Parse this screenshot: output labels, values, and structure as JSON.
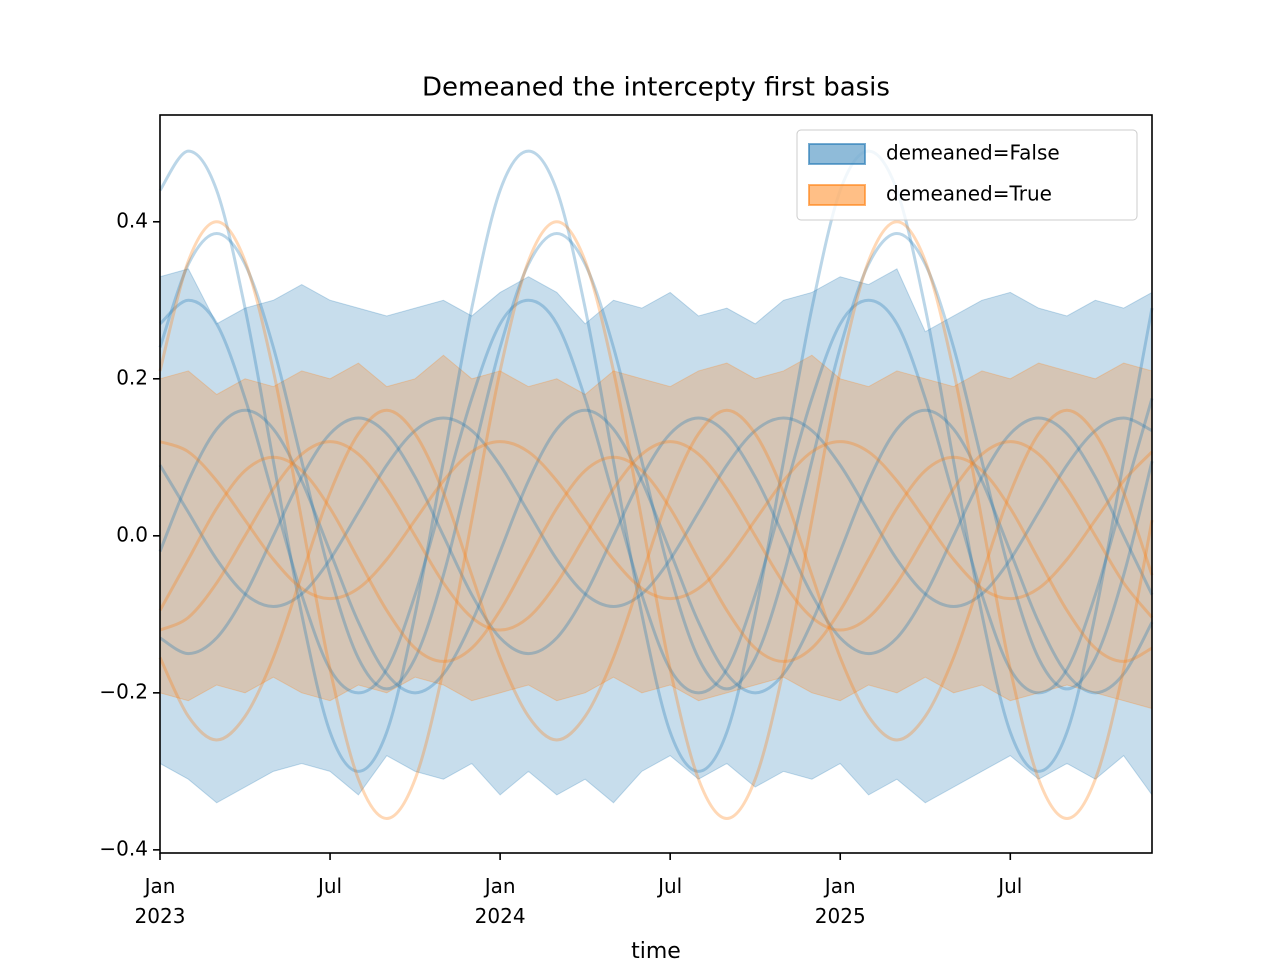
{
  "chart_data": {
    "type": "band",
    "title": "Demeaned the intercepty first basis",
    "xlabel": "time",
    "x": [
      "2023-01",
      "2023-02",
      "2023-03",
      "2023-04",
      "2023-05",
      "2023-06",
      "2023-07",
      "2023-08",
      "2023-09",
      "2023-10",
      "2023-11",
      "2023-12",
      "2024-01",
      "2024-02",
      "2024-03",
      "2024-04",
      "2024-05",
      "2024-06",
      "2024-07",
      "2024-08",
      "2024-09",
      "2024-10",
      "2024-11",
      "2024-12",
      "2025-01",
      "2025-02",
      "2025-03",
      "2025-04",
      "2025-05",
      "2025-06",
      "2025-07",
      "2025-08",
      "2025-09",
      "2025-10",
      "2025-11",
      "2025-12"
    ],
    "xlim": [
      "2023-01",
      "2025-12"
    ],
    "xticks": [
      {
        "value": "2023-01",
        "label": "Jan 2023"
      },
      {
        "value": "2023-07",
        "label": "Jul"
      },
      {
        "value": "2024-01",
        "label": "Jan 2024"
      },
      {
        "value": "2024-07",
        "label": "Jul"
      },
      {
        "value": "2025-01",
        "label": "Jan 2025"
      },
      {
        "value": "2025-07",
        "label": "Jul"
      }
    ],
    "ylim": [
      -0.404,
      0.536
    ],
    "yticks": [
      {
        "value": -0.4,
        "label": "−0.4"
      },
      {
        "value": -0.2,
        "label": "−0.2"
      },
      {
        "value": 0,
        "label": "0.0"
      },
      0.2,
      0.4
    ],
    "legend": "upper right",
    "series": [
      {
        "name": "demeaned=False",
        "color": "#1f77b4",
        "upper": [
          0.33,
          0.34,
          0.27,
          0.29,
          0.3,
          0.32,
          0.3,
          0.29,
          0.28,
          0.29,
          0.3,
          0.28,
          0.31,
          0.33,
          0.31,
          0.27,
          0.3,
          0.29,
          0.31,
          0.28,
          0.29,
          0.27,
          0.3,
          0.31,
          0.33,
          0.32,
          0.34,
          0.26,
          0.28,
          0.3,
          0.31,
          0.29,
          0.28,
          0.3,
          0.29,
          0.31
        ],
        "lower": [
          -0.29,
          -0.31,
          -0.34,
          -0.32,
          -0.3,
          -0.29,
          -0.3,
          -0.33,
          -0.28,
          -0.3,
          -0.31,
          -0.29,
          -0.33,
          -0.3,
          -0.33,
          -0.31,
          -0.34,
          -0.3,
          -0.28,
          -0.31,
          -0.29,
          -0.32,
          -0.3,
          -0.31,
          -0.29,
          -0.33,
          -0.31,
          -0.34,
          -0.32,
          -0.3,
          -0.28,
          -0.31,
          -0.29,
          -0.31,
          -0.28,
          -0.33
        ],
        "samples": [
          [
            0.44,
            0.49,
            0.44,
            0.29,
            0.095,
            -0.1,
            -0.25,
            -0.3,
            -0.25,
            -0.1,
            0.095,
            0.29,
            0.44,
            0.49,
            0.44,
            0.29,
            0.095,
            -0.1,
            -0.25,
            -0.3,
            -0.25,
            -0.1,
            0.095,
            0.29,
            0.44,
            0.49,
            0.44,
            0.29,
            0.095,
            -0.1,
            -0.25,
            -0.3,
            -0.25,
            -0.1,
            0.095,
            0.29
          ],
          [
            0.24,
            0.346,
            0.385,
            0.346,
            0.24,
            0.095,
            -0.05,
            -0.156,
            -0.195,
            -0.156,
            -0.05,
            0.095,
            0.24,
            0.346,
            0.385,
            0.346,
            0.24,
            0.095,
            -0.05,
            -0.156,
            -0.195,
            -0.156,
            -0.05,
            0.095,
            0.24,
            0.346,
            0.385,
            0.346,
            0.24,
            0.095,
            -0.05,
            -0.156,
            -0.195,
            -0.156,
            -0.05,
            0.095
          ],
          [
            0.27,
            0.3,
            0.27,
            0.175,
            0.05,
            -0.075,
            -0.17,
            -0.2,
            -0.17,
            -0.075,
            0.05,
            0.175,
            0.27,
            0.3,
            0.27,
            0.175,
            0.05,
            -0.075,
            -0.17,
            -0.2,
            -0.17,
            -0.075,
            0.05,
            0.175,
            0.27,
            0.3,
            0.27,
            0.175,
            0.05,
            -0.075,
            -0.17,
            -0.2,
            -0.17,
            -0.075,
            0.05,
            0.175
          ],
          [
            -0.02,
            0.07,
            0.136,
            0.16,
            0.136,
            0.07,
            -0.02,
            -0.11,
            -0.176,
            -0.2,
            -0.176,
            -0.11,
            -0.02,
            0.07,
            0.136,
            0.16,
            0.136,
            0.07,
            -0.02,
            -0.11,
            -0.176,
            -0.2,
            -0.176,
            -0.11,
            -0.02,
            0.07,
            0.136,
            0.16,
            0.136,
            0.07,
            -0.02,
            -0.11,
            -0.176,
            -0.2,
            -0.176,
            -0.11
          ],
          [
            -0.13,
            -0.15,
            -0.13,
            -0.075,
            0,
            0.075,
            0.13,
            0.15,
            0.13,
            0.075,
            0,
            -0.075,
            -0.13,
            -0.15,
            -0.13,
            -0.075,
            0,
            0.075,
            0.13,
            0.15,
            0.13,
            0.075,
            0,
            -0.075,
            -0.13,
            -0.15,
            -0.13,
            -0.075,
            0,
            0.075,
            0.13,
            0.15,
            0.13,
            0.075,
            0,
            -0.075
          ],
          [
            0.09,
            0.03,
            -0.03,
            -0.074,
            -0.09,
            -0.074,
            -0.03,
            0.03,
            0.09,
            0.134,
            0.15,
            0.134,
            0.09,
            0.03,
            -0.03,
            -0.074,
            -0.09,
            -0.074,
            -0.03,
            0.03,
            0.09,
            0.134,
            0.15,
            0.134,
            0.09,
            0.03,
            -0.03,
            -0.074,
            -0.09,
            -0.074,
            -0.03,
            0.03,
            0.09,
            0.134,
            0.15,
            0.134
          ]
        ]
      },
      {
        "name": "demeaned=True",
        "color": "#ff7f0e",
        "upper": [
          0.2,
          0.21,
          0.18,
          0.2,
          0.19,
          0.21,
          0.2,
          0.22,
          0.19,
          0.2,
          0.23,
          0.2,
          0.21,
          0.19,
          0.2,
          0.18,
          0.21,
          0.2,
          0.19,
          0.21,
          0.22,
          0.2,
          0.21,
          0.23,
          0.2,
          0.19,
          0.21,
          0.2,
          0.19,
          0.21,
          0.2,
          0.22,
          0.21,
          0.2,
          0.22,
          0.21
        ],
        "lower": [
          -0.2,
          -0.21,
          -0.19,
          -0.2,
          -0.18,
          -0.2,
          -0.21,
          -0.19,
          -0.2,
          -0.18,
          -0.19,
          -0.21,
          -0.2,
          -0.19,
          -0.21,
          -0.2,
          -0.18,
          -0.2,
          -0.19,
          -0.21,
          -0.2,
          -0.19,
          -0.18,
          -0.2,
          -0.21,
          -0.19,
          -0.2,
          -0.18,
          -0.2,
          -0.19,
          -0.21,
          -0.2,
          -0.19,
          -0.2,
          -0.21,
          -0.22
        ],
        "samples": [
          [
            0.21,
            0.35,
            0.4,
            0.35,
            0.21,
            0.02,
            -0.17,
            -0.31,
            -0.36,
            -0.31,
            -0.17,
            0.02,
            0.21,
            0.35,
            0.4,
            0.35,
            0.21,
            0.02,
            -0.17,
            -0.31,
            -0.36,
            -0.31,
            -0.17,
            0.02,
            0.21,
            0.35,
            0.4,
            0.35,
            0.21,
            0.02,
            -0.17,
            -0.31,
            -0.36,
            -0.31,
            -0.17,
            0.02
          ],
          [
            -0.155,
            -0.23,
            -0.26,
            -0.23,
            -0.155,
            -0.05,
            0.055,
            0.13,
            0.16,
            0.13,
            0.055,
            -0.05,
            -0.155,
            -0.23,
            -0.26,
            -0.23,
            -0.155,
            -0.05,
            0.055,
            0.13,
            0.16,
            0.13,
            0.055,
            -0.05,
            -0.155,
            -0.23,
            -0.26,
            -0.23,
            -0.155,
            -0.05,
            0.055,
            0.13,
            0.16,
            0.13,
            0.055,
            -0.05
          ],
          [
            -0.12,
            -0.104,
            -0.06,
            0,
            0.06,
            0.104,
            0.12,
            0.104,
            0.06,
            0,
            -0.06,
            -0.104,
            -0.12,
            -0.104,
            -0.06,
            0,
            0.06,
            0.104,
            0.12,
            0.104,
            0.06,
            0,
            -0.06,
            -0.104,
            -0.12,
            -0.104,
            -0.06,
            0,
            0.06,
            0.104,
            0.12,
            0.104,
            0.06,
            0,
            -0.06,
            -0.104
          ],
          [
            0.12,
            0.107,
            0.07,
            0.02,
            -0.03,
            -0.067,
            -0.08,
            -0.067,
            -0.03,
            0.02,
            0.07,
            0.107,
            0.12,
            0.107,
            0.07,
            0.02,
            -0.03,
            -0.067,
            -0.08,
            -0.067,
            -0.03,
            0.02,
            0.07,
            0.107,
            0.12,
            0.107,
            0.07,
            0.02,
            -0.03,
            -0.067,
            -0.08,
            -0.067,
            -0.03,
            0.02,
            0.07,
            0.107
          ],
          [
            -0.095,
            -0.03,
            0.035,
            0.083,
            0.1,
            0.083,
            0.035,
            -0.03,
            -0.095,
            -0.143,
            -0.16,
            -0.143,
            -0.095,
            -0.03,
            0.035,
            0.083,
            0.1,
            0.083,
            0.035,
            -0.03,
            -0.095,
            -0.143,
            -0.16,
            -0.143,
            -0.095,
            -0.03,
            0.035,
            0.083,
            0.1,
            0.083,
            0.035,
            -0.03,
            -0.095,
            -0.143,
            -0.16,
            -0.143
          ]
        ]
      }
    ]
  }
}
